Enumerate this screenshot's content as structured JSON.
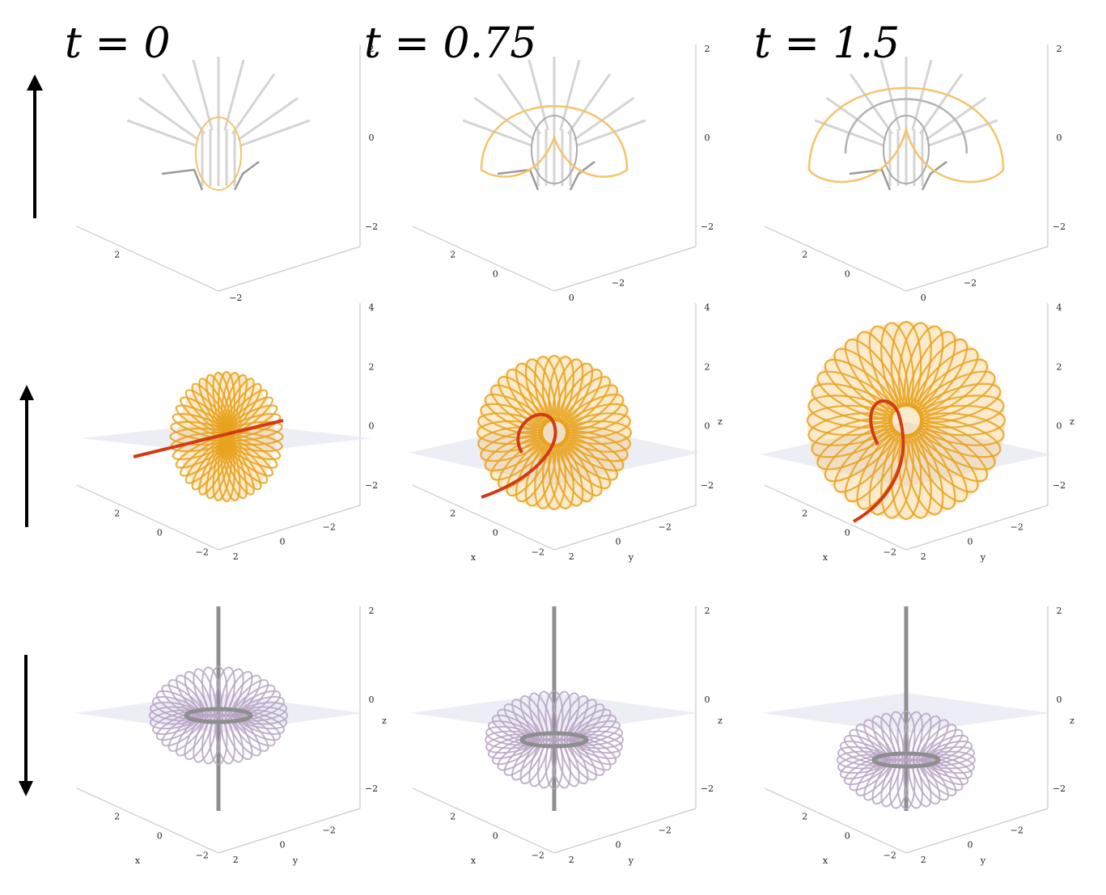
{
  "titles": [
    "t = 0",
    "t = 0.75",
    "t = 1.5"
  ],
  "arrows": [
    "up",
    "up",
    "down"
  ],
  "colors": {
    "gold": "#e8a21c",
    "gold_fill": "#f4c46a",
    "red": "#d23a14",
    "purple": "#b9a4c4",
    "gray_line": "#8e8e8e",
    "light_line": "#d4d4d4",
    "plane": "#e7e7f1"
  },
  "rows": [
    {
      "panels": [
        {
          "z_ticks": [
            "2",
            "0",
            "−2"
          ],
          "x_ticks": [
            "2",
            ""
          ],
          "y_ticks": [
            "−2"
          ]
        },
        {
          "z_ticks": [
            "2",
            "0",
            "−2"
          ],
          "x_ticks": [
            "2",
            "0"
          ],
          "y_ticks": [
            "0",
            "−2"
          ]
        },
        {
          "z_ticks": [
            "2",
            "0",
            "−2"
          ],
          "x_ticks": [
            "2",
            "0"
          ],
          "y_ticks": [
            "0",
            "−2"
          ]
        }
      ]
    },
    {
      "panels": [
        {
          "z_ticks": [
            "4",
            "2",
            "0",
            "−2"
          ],
          "x_ticks": [
            "2",
            "0",
            "−2"
          ],
          "y_ticks": [
            "2",
            "0",
            "−2"
          ],
          "xlabel": "",
          "ylabel": "",
          "zlabel": ""
        },
        {
          "z_ticks": [
            "4",
            "2",
            "0",
            "−2"
          ],
          "x_ticks": [
            "2",
            "0",
            "−2"
          ],
          "y_ticks": [
            "2",
            "0",
            "−2"
          ],
          "xlabel": "x",
          "ylabel": "y",
          "zlabel": "z"
        },
        {
          "z_ticks": [
            "4",
            "2",
            "0",
            "−2"
          ],
          "x_ticks": [
            "2",
            "0",
            "−2"
          ],
          "y_ticks": [
            "2",
            "0",
            "−2"
          ],
          "xlabel": "x",
          "ylabel": "y",
          "zlabel": "z"
        }
      ]
    },
    {
      "panels": [
        {
          "z_ticks": [
            "2",
            "0",
            "−2"
          ],
          "x_ticks": [
            "2",
            "0",
            "−2"
          ],
          "y_ticks": [
            "2",
            "0",
            "−2"
          ],
          "xlabel": "x",
          "ylabel": "y",
          "zlabel": "z"
        },
        {
          "z_ticks": [
            "2",
            "0",
            "−2"
          ],
          "x_ticks": [
            "2",
            "0",
            "−2"
          ],
          "y_ticks": [
            "2",
            "0",
            "−2"
          ],
          "xlabel": "x",
          "ylabel": "y",
          "zlabel": "z"
        },
        {
          "z_ticks": [
            "2",
            "0",
            "−2"
          ],
          "x_ticks": [
            "2",
            "0",
            "−2"
          ],
          "y_ticks": [
            "2",
            "0",
            "−2"
          ],
          "xlabel": "x",
          "ylabel": "y",
          "zlabel": "z"
        }
      ]
    }
  ]
}
